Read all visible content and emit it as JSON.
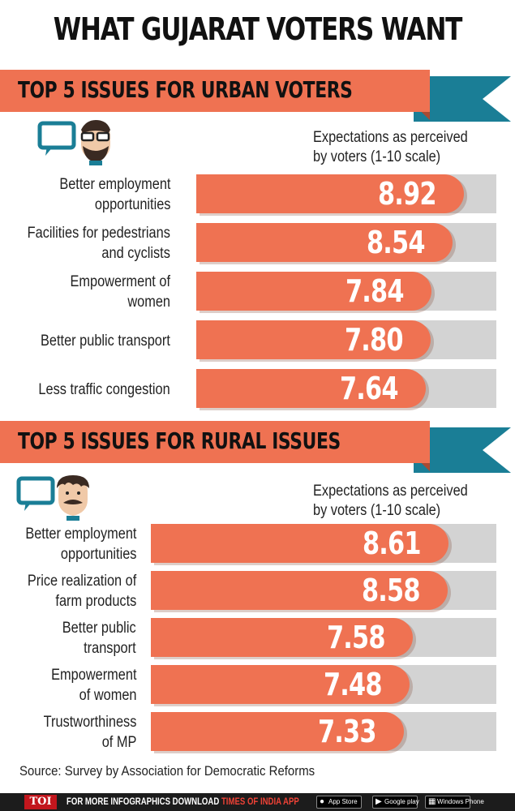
{
  "title": "WHAT GUJARAT VOTERS WANT",
  "colors": {
    "bar": "#ef7252",
    "track": "#d3d3d3",
    "banner": "#ef7252",
    "banner_dark": "#a94b33",
    "accent": "#1a7e96"
  },
  "urban": {
    "heading": "TOP 5 ISSUES FOR URBAN VOTERS",
    "icon": "urban-voter-speech-icon",
    "caption_lines": [
      "Expectations as perceived",
      "by voters (1-10 scale)"
    ]
  },
  "rural": {
    "heading": "TOP 5 ISSUES FOR RURAL ISSUES",
    "icon": "rural-voter-speech-icon",
    "caption_lines": [
      "Expectations as perceived",
      "by voters (1-10 scale)"
    ]
  },
  "chart_data": [
    {
      "type": "bar",
      "orientation": "horizontal",
      "scale": "1-10",
      "categories": [
        [
          "Better employment",
          "opportunities"
        ],
        [
          "Facilities for pedestrians",
          "and cyclists"
        ],
        [
          "Empowerment of women"
        ],
        [
          "Better public transport"
        ],
        [
          "Less traffic congestion"
        ]
      ],
      "values": [
        8.92,
        8.54,
        7.84,
        7.8,
        7.64
      ],
      "value_labels": [
        "8.92",
        "8.54",
        "7.84",
        "7.80",
        "7.64"
      ]
    },
    {
      "type": "bar",
      "orientation": "horizontal",
      "scale": "1-10",
      "categories": [
        [
          "Better employment",
          "opportunities"
        ],
        [
          "Price realization of",
          "farm products"
        ],
        [
          "Better public",
          "transport"
        ],
        [
          "Empowerment",
          "of women"
        ],
        [
          "Trustworthiness",
          "of MP"
        ]
      ],
      "values": [
        8.61,
        8.58,
        7.58,
        7.48,
        7.33
      ],
      "value_labels": [
        "8.61",
        "8.58",
        "7.58",
        "7.48",
        "7.33"
      ]
    }
  ],
  "source": "Source: Survey by Association for Democratic Reforms",
  "footer": {
    "logo": "TOI",
    "text_prefix": "FOR MORE  INFOGRAPHICS DOWNLOAD ",
    "text_brand": "TIMES OF INDIA  APP",
    "stores": [
      {
        "label": "App Store",
        "icon": "apple-icon"
      },
      {
        "label": "Google play",
        "icon": "google-play-icon"
      },
      {
        "label": "Windows Phone",
        "icon": "windows-icon"
      }
    ]
  }
}
